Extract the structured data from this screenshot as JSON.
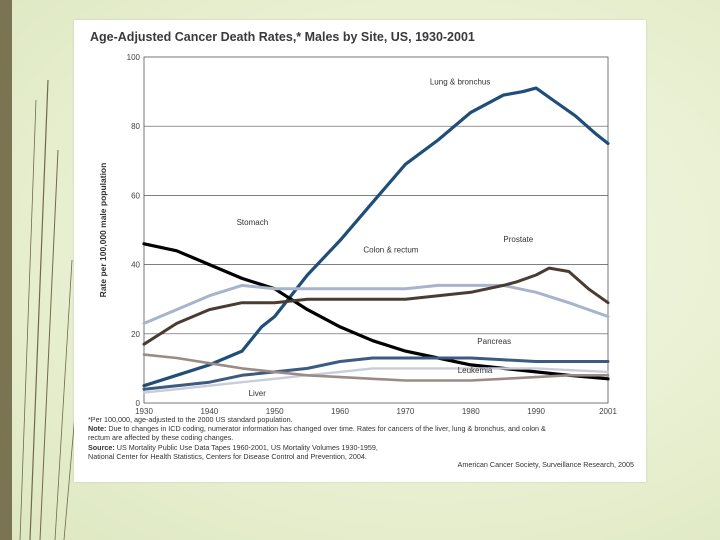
{
  "chart_data": {
    "type": "line",
    "title": "Age-Adjusted Cancer Death Rates,* Males by Site, US, 1930-2001",
    "xlabel": "",
    "ylabel": "Rate per 100,000 male population",
    "xlim": [
      1930,
      2001
    ],
    "ylim": [
      0,
      100
    ],
    "x_ticks": [
      "1930",
      "1940",
      "1950",
      "1960",
      "1970",
      "1980",
      "1990",
      "2001"
    ],
    "y_ticks": [
      "0",
      "20",
      "40",
      "60",
      "80",
      "100"
    ],
    "gridlines": [
      20,
      40,
      60,
      80
    ],
    "series": [
      {
        "name": "Lung & bronchus",
        "color": "#1f4e79",
        "width": 3.2,
        "x": [
          1930,
          1935,
          1940,
          1945,
          1948,
          1950,
          1955,
          1960,
          1965,
          1970,
          1975,
          1980,
          1985,
          1988,
          1990,
          1993,
          1996,
          1999,
          2001
        ],
        "y": [
          5,
          8,
          11,
          15,
          22,
          25,
          37,
          47,
          58,
          69,
          76,
          84,
          89,
          90,
          91,
          87,
          83,
          78,
          75
        ]
      },
      {
        "name": "Stomach",
        "color": "#000000",
        "width": 3.2,
        "x": [
          1930,
          1935,
          1940,
          1945,
          1950,
          1955,
          1960,
          1965,
          1970,
          1975,
          1980,
          1985,
          1990,
          1995,
          2001
        ],
        "y": [
          46,
          44,
          40,
          36,
          33,
          27,
          22,
          18,
          15,
          13,
          11,
          10,
          9,
          8,
          7
        ]
      },
      {
        "name": "Colon & rectum",
        "color": "#a8b4cc",
        "width": 3,
        "x": [
          1930,
          1935,
          1940,
          1945,
          1950,
          1955,
          1960,
          1965,
          1970,
          1975,
          1980,
          1985,
          1990,
          1995,
          2001
        ],
        "y": [
          23,
          27,
          31,
          34,
          33,
          33,
          33,
          33,
          33,
          34,
          34,
          34,
          32,
          29,
          25
        ]
      },
      {
        "name": "Prostate",
        "color": "#4a3c33",
        "width": 3,
        "x": [
          1930,
          1935,
          1940,
          1945,
          1950,
          1955,
          1960,
          1965,
          1970,
          1975,
          1980,
          1985,
          1987,
          1990,
          1992,
          1995,
          1998,
          2001
        ],
        "y": [
          17,
          23,
          27,
          29,
          29,
          30,
          30,
          30,
          30,
          31,
          32,
          34,
          35,
          37,
          39,
          38,
          33,
          29
        ]
      },
      {
        "name": "Pancreas",
        "color": "#3d5a80",
        "width": 3,
        "x": [
          1930,
          1935,
          1940,
          1945,
          1950,
          1955,
          1960,
          1965,
          1970,
          1975,
          1980,
          1985,
          1990,
          1995,
          2001
        ],
        "y": [
          4,
          5,
          6,
          8,
          9,
          10,
          12,
          13,
          13,
          13,
          13,
          12.5,
          12,
          12,
          12
        ]
      },
      {
        "name": "Leukemia",
        "color": "#c8cdd8",
        "width": 2.4,
        "x": [
          1930,
          1935,
          1940,
          1945,
          1950,
          1955,
          1960,
          1965,
          1970,
          1975,
          1980,
          1985,
          1990,
          1995,
          2001
        ],
        "y": [
          3,
          4,
          5,
          6,
          7,
          8,
          9,
          10,
          10,
          10,
          10,
          10,
          10,
          9.5,
          9
        ]
      },
      {
        "name": "Liver",
        "color": "#9a8b84",
        "width": 2.6,
        "x": [
          1930,
          1935,
          1940,
          1945,
          1950,
          1955,
          1960,
          1965,
          1970,
          1975,
          1980,
          1985,
          1990,
          1995,
          2001
        ],
        "y": [
          14,
          13,
          11.5,
          10,
          9,
          8,
          7.5,
          7,
          6.5,
          6.5,
          6.5,
          7,
          7.5,
          8,
          8
        ]
      }
    ],
    "labels": [
      {
        "text": "Lung & bronchus",
        "x": 1983,
        "y": 92,
        "anchor": "end"
      },
      {
        "text": "Stomach",
        "x": 1949,
        "y": 51.5,
        "anchor": "end"
      },
      {
        "text": "Colon & rectum",
        "x": 1972,
        "y": 43.5,
        "anchor": "end"
      },
      {
        "text": "Prostate",
        "x": 1985,
        "y": 46.5,
        "anchor": "start"
      },
      {
        "text": "Pancreas",
        "x": 1981,
        "y": 17,
        "anchor": "start"
      },
      {
        "text": "Leukemia",
        "x": 1978,
        "y": 8.7,
        "anchor": "start"
      },
      {
        "text": "Liver",
        "x": 1946,
        "y": 2,
        "anchor": "start"
      }
    ]
  },
  "notes": {
    "line1": "*Per 100,000, age-adjusted to the 2000 US standard population.",
    "note_label": "Note:",
    "note_text": " Due to changes in ICD coding, numerator information has changed over time. Rates for cancers of the liver, lung & bronchus, and colon &",
    "note_text2": "rectum are affected by these coding changes.",
    "source_label": "Source:",
    "source_text": " US Mortality Public Use Data Tapes 1960-2001, US Mortality Volumes 1930-1959,",
    "source_text2": "National Center for Health Statistics, Centers for Disease Control and Prevention, 2004.",
    "credit": "American Cancer Society, Surveillance Research, 2005"
  }
}
